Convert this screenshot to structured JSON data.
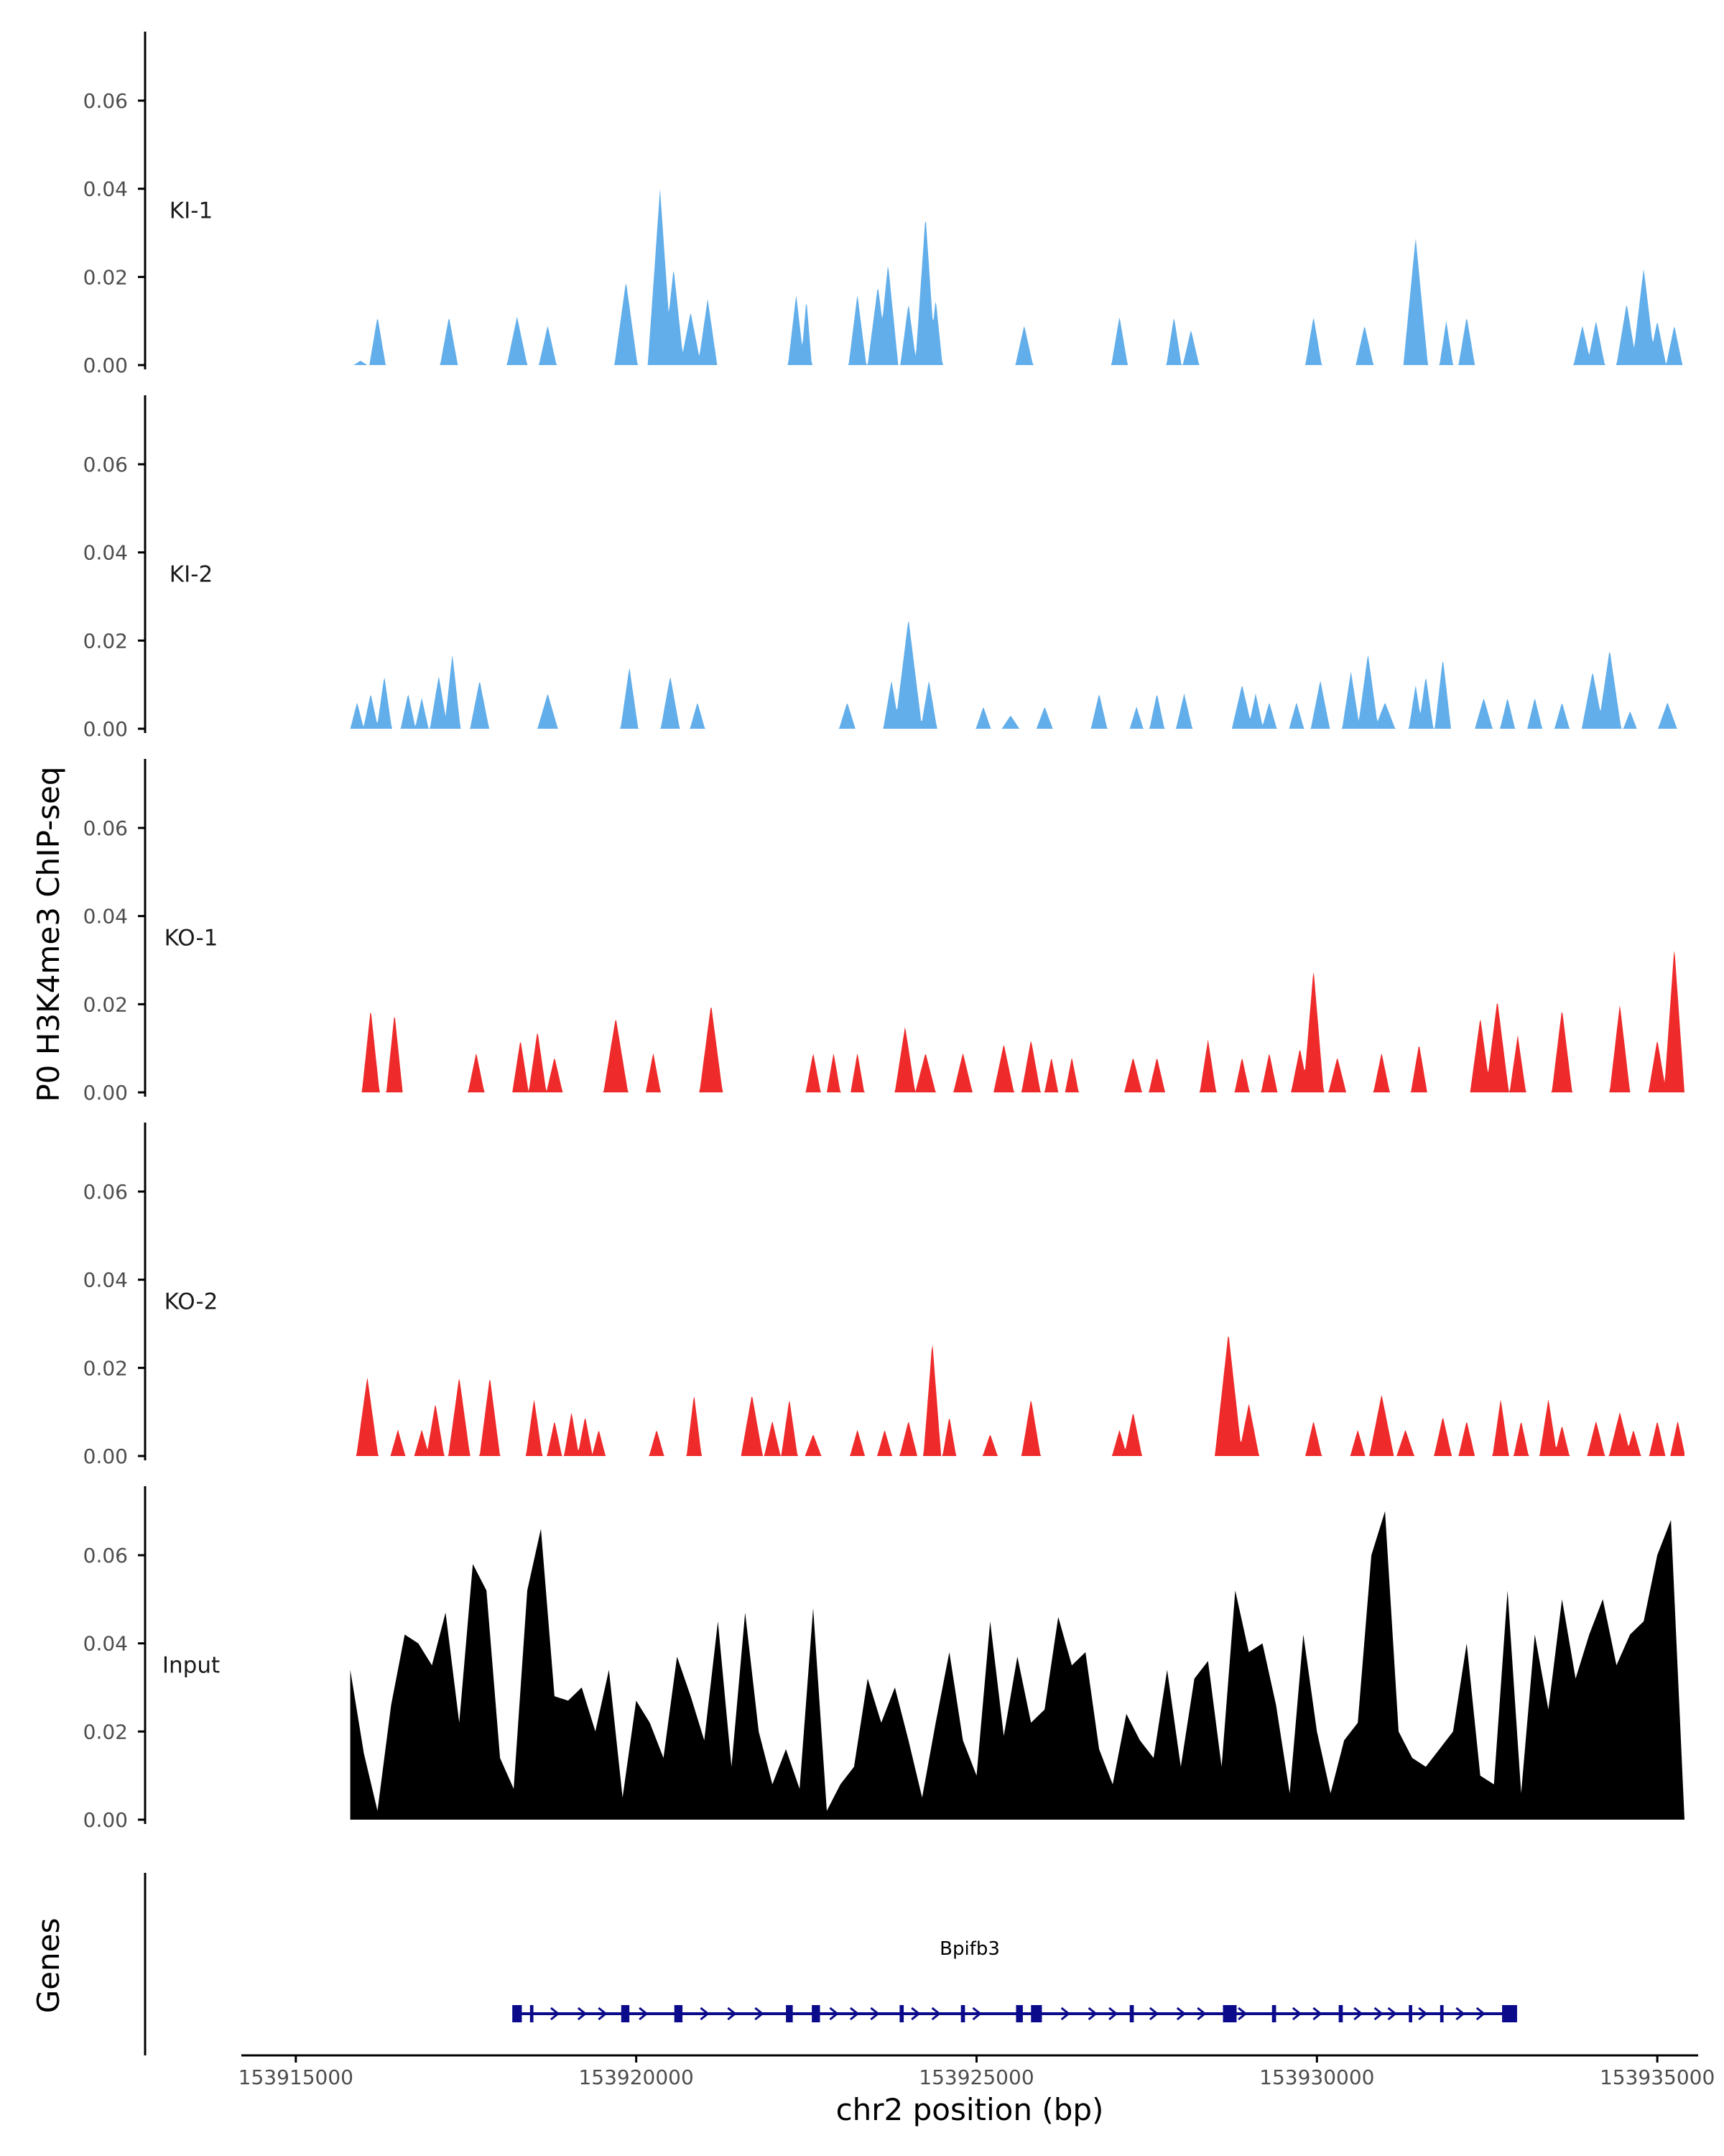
{
  "chart_data": {
    "type": "area",
    "title": "",
    "ylabel": "P0 H3K4me3 ChIP-seq",
    "xlabel": "chr2 position (bp)",
    "genes_label": "Genes",
    "xlim": [
      153914200,
      153935600
    ],
    "data_x_range": [
      153915800,
      153935400
    ],
    "ylim": [
      0,
      0.075
    ],
    "y_ticks": [
      0,
      0.02,
      0.04,
      0.06
    ],
    "y_tick_labels": [
      "0.00",
      "0.02",
      "0.04",
      "0.06"
    ],
    "x_ticks": [
      153915000,
      153920000,
      153925000,
      153930000,
      153935000
    ],
    "x_tick_labels": [
      "153915000",
      "153920000",
      "153925000",
      "153930000",
      "153935000"
    ],
    "colors": {
      "KI": "#62aeea",
      "KO": "#ee2a2a",
      "Input": "#000000",
      "gene": "#0a0a8a",
      "axis": "#000000"
    },
    "series": [
      {
        "name": "KI-1",
        "color": "#62aeea",
        "peaks": [
          [
            153915950,
            0.001,
            100
          ],
          [
            153916200,
            0.011,
            120
          ],
          [
            153917250,
            0.011,
            130
          ],
          [
            153918250,
            0.011,
            150
          ],
          [
            153918700,
            0.009,
            130
          ],
          [
            153919850,
            0.019,
            170
          ],
          [
            153920350,
            0.04,
            180
          ],
          [
            153920550,
            0.022,
            150
          ],
          [
            153920800,
            0.012,
            150
          ],
          [
            153921050,
            0.015,
            140
          ],
          [
            153922350,
            0.016,
            120
          ],
          [
            153922500,
            0.015,
            80
          ],
          [
            153923250,
            0.016,
            130
          ],
          [
            153923550,
            0.018,
            150
          ],
          [
            153923700,
            0.023,
            150
          ],
          [
            153924000,
            0.014,
            120
          ],
          [
            153924250,
            0.034,
            150
          ],
          [
            153924400,
            0.015,
            100
          ],
          [
            153925700,
            0.009,
            130
          ],
          [
            153927100,
            0.011,
            120
          ],
          [
            153927900,
            0.011,
            110
          ],
          [
            153928150,
            0.008,
            120
          ],
          [
            153929950,
            0.011,
            120
          ],
          [
            153930700,
            0.009,
            130
          ],
          [
            153931450,
            0.029,
            180
          ],
          [
            153931900,
            0.01,
            100
          ],
          [
            153932200,
            0.011,
            120
          ],
          [
            153933900,
            0.009,
            130
          ],
          [
            153934100,
            0.01,
            130
          ],
          [
            153934550,
            0.014,
            150
          ],
          [
            153934800,
            0.022,
            170
          ],
          [
            153935000,
            0.01,
            130
          ],
          [
            153935250,
            0.009,
            120
          ]
        ]
      },
      {
        "name": "KI-2",
        "color": "#62aeea",
        "peaks": [
          [
            153915900,
            0.006,
            100
          ],
          [
            153916100,
            0.008,
            110
          ],
          [
            153916300,
            0.012,
            110
          ],
          [
            153916650,
            0.008,
            110
          ],
          [
            153916850,
            0.007,
            100
          ],
          [
            153917100,
            0.012,
            130
          ],
          [
            153917300,
            0.017,
            120
          ],
          [
            153917700,
            0.011,
            140
          ],
          [
            153918700,
            0.008,
            150
          ],
          [
            153919900,
            0.014,
            130
          ],
          [
            153920500,
            0.012,
            140
          ],
          [
            153920900,
            0.006,
            110
          ],
          [
            153923100,
            0.006,
            120
          ],
          [
            153923750,
            0.011,
            120
          ],
          [
            153924000,
            0.025,
            200
          ],
          [
            153924300,
            0.011,
            120
          ],
          [
            153925100,
            0.005,
            110
          ],
          [
            153925500,
            0.003,
            130
          ],
          [
            153926000,
            0.005,
            120
          ],
          [
            153926800,
            0.008,
            120
          ],
          [
            153927350,
            0.005,
            100
          ],
          [
            153927650,
            0.008,
            110
          ],
          [
            153928050,
            0.008,
            120
          ],
          [
            153928900,
            0.01,
            150
          ],
          [
            153929100,
            0.008,
            110
          ],
          [
            153929300,
            0.006,
            110
          ],
          [
            153929700,
            0.006,
            110
          ],
          [
            153930050,
            0.011,
            140
          ],
          [
            153930500,
            0.013,
            130
          ],
          [
            153930750,
            0.017,
            150
          ],
          [
            153931000,
            0.006,
            150
          ],
          [
            153931450,
            0.01,
            100
          ],
          [
            153931600,
            0.012,
            110
          ],
          [
            153931850,
            0.016,
            120
          ],
          [
            153932450,
            0.007,
            130
          ],
          [
            153932800,
            0.007,
            110
          ],
          [
            153933200,
            0.007,
            110
          ],
          [
            153933600,
            0.006,
            110
          ],
          [
            153934050,
            0.013,
            160
          ],
          [
            153934300,
            0.018,
            170
          ],
          [
            153934600,
            0.004,
            100
          ],
          [
            153935150,
            0.006,
            140
          ]
        ]
      },
      {
        "name": "KO-1",
        "color": "#ee2a2a",
        "peaks": [
          [
            153916100,
            0.019,
            130
          ],
          [
            153916450,
            0.018,
            120
          ],
          [
            153917650,
            0.009,
            120
          ],
          [
            153918300,
            0.012,
            120
          ],
          [
            153918550,
            0.014,
            130
          ],
          [
            153918800,
            0.008,
            120
          ],
          [
            153919700,
            0.017,
            180
          ],
          [
            153920250,
            0.009,
            110
          ],
          [
            153921100,
            0.02,
            170
          ],
          [
            153922600,
            0.009,
            110
          ],
          [
            153922900,
            0.009,
            100
          ],
          [
            153923250,
            0.009,
            100
          ],
          [
            153923950,
            0.015,
            150
          ],
          [
            153924250,
            0.009,
            150
          ],
          [
            153924800,
            0.009,
            140
          ],
          [
            153925400,
            0.011,
            150
          ],
          [
            153925800,
            0.012,
            140
          ],
          [
            153926100,
            0.008,
            100
          ],
          [
            153926400,
            0.008,
            100
          ],
          [
            153927300,
            0.008,
            130
          ],
          [
            153927650,
            0.008,
            120
          ],
          [
            153928400,
            0.012,
            120
          ],
          [
            153928900,
            0.008,
            110
          ],
          [
            153929300,
            0.009,
            120
          ],
          [
            153929750,
            0.01,
            130
          ],
          [
            153929950,
            0.028,
            150
          ],
          [
            153930300,
            0.008,
            130
          ],
          [
            153930950,
            0.009,
            120
          ],
          [
            153931500,
            0.011,
            120
          ],
          [
            153932400,
            0.017,
            150
          ],
          [
            153932650,
            0.021,
            170
          ],
          [
            153932950,
            0.013,
            120
          ],
          [
            153933600,
            0.019,
            150
          ],
          [
            153934450,
            0.02,
            150
          ],
          [
            153935000,
            0.012,
            130
          ],
          [
            153935250,
            0.033,
            150
          ]
        ]
      },
      {
        "name": "KO-2",
        "color": "#ee2a2a",
        "peaks": [
          [
            153916050,
            0.018,
            160
          ],
          [
            153916500,
            0.006,
            110
          ],
          [
            153916850,
            0.006,
            110
          ],
          [
            153917050,
            0.012,
            130
          ],
          [
            153917400,
            0.018,
            160
          ],
          [
            153917850,
            0.018,
            150
          ],
          [
            153918500,
            0.013,
            120
          ],
          [
            153918800,
            0.008,
            110
          ],
          [
            153919050,
            0.01,
            110
          ],
          [
            153919250,
            0.009,
            110
          ],
          [
            153919450,
            0.006,
            100
          ],
          [
            153920300,
            0.006,
            110
          ],
          [
            153920850,
            0.014,
            110
          ],
          [
            153921700,
            0.014,
            160
          ],
          [
            153922000,
            0.008,
            120
          ],
          [
            153922250,
            0.013,
            120
          ],
          [
            153922600,
            0.005,
            120
          ],
          [
            153923250,
            0.006,
            110
          ],
          [
            153923650,
            0.006,
            110
          ],
          [
            153924000,
            0.008,
            130
          ],
          [
            153924350,
            0.026,
            130
          ],
          [
            153924600,
            0.009,
            100
          ],
          [
            153925200,
            0.005,
            110
          ],
          [
            153925800,
            0.013,
            140
          ],
          [
            153927100,
            0.006,
            110
          ],
          [
            153927300,
            0.01,
            130
          ],
          [
            153928700,
            0.028,
            200
          ],
          [
            153929000,
            0.012,
            150
          ],
          [
            153929950,
            0.008,
            120
          ],
          [
            153930600,
            0.006,
            110
          ],
          [
            153930950,
            0.014,
            180
          ],
          [
            153931300,
            0.006,
            130
          ],
          [
            153931850,
            0.009,
            130
          ],
          [
            153932200,
            0.008,
            120
          ],
          [
            153932700,
            0.013,
            120
          ],
          [
            153933000,
            0.008,
            110
          ],
          [
            153933400,
            0.013,
            130
          ],
          [
            153933600,
            0.007,
            110
          ],
          [
            153934100,
            0.008,
            130
          ],
          [
            153934450,
            0.01,
            160
          ],
          [
            153934650,
            0.006,
            110
          ],
          [
            153935000,
            0.008,
            120
          ],
          [
            153935300,
            0.008,
            110
          ]
        ]
      },
      {
        "name": "Input",
        "color": "#000000",
        "x": [
          153915800,
          153916000,
          153916200,
          153916400,
          153916600,
          153916800,
          153917000,
          153917200,
          153917400,
          153917600,
          153917800,
          153918000,
          153918200,
          153918400,
          153918600,
          153918800,
          153919000,
          153919200,
          153919400,
          153919600,
          153919800,
          153920000,
          153920200,
          153920400,
          153920600,
          153920800,
          153921000,
          153921200,
          153921400,
          153921600,
          153921800,
          153922000,
          153922200,
          153922400,
          153922600,
          153922800,
          153923000,
          153923200,
          153923400,
          153923600,
          153923800,
          153924000,
          153924200,
          153924400,
          153924600,
          153924800,
          153925000,
          153925200,
          153925400,
          153925600,
          153925800,
          153926000,
          153926200,
          153926400,
          153926600,
          153926800,
          153927000,
          153927200,
          153927400,
          153927600,
          153927800,
          153928000,
          153928200,
          153928400,
          153928600,
          153928800,
          153929000,
          153929200,
          153929400,
          153929600,
          153929800,
          153930000,
          153930200,
          153930400,
          153930600,
          153930800,
          153931000,
          153931200,
          153931400,
          153931600,
          153931800,
          153932000,
          153932200,
          153932400,
          153932600,
          153932800,
          153933000,
          153933200,
          153933400,
          153933600,
          153933800,
          153934000,
          153934200,
          153934400,
          153934600,
          153934800,
          153935000,
          153935200,
          153935400
        ],
        "values": [
          0.034,
          0.015,
          0.002,
          0.026,
          0.042,
          0.04,
          0.035,
          0.047,
          0.022,
          0.058,
          0.052,
          0.014,
          0.007,
          0.052,
          0.066,
          0.028,
          0.027,
          0.03,
          0.02,
          0.034,
          0.005,
          0.027,
          0.022,
          0.014,
          0.037,
          0.028,
          0.018,
          0.045,
          0.012,
          0.047,
          0.02,
          0.008,
          0.016,
          0.007,
          0.048,
          0.002,
          0.008,
          0.012,
          0.032,
          0.022,
          0.03,
          0.018,
          0.005,
          0.022,
          0.038,
          0.018,
          0.01,
          0.045,
          0.019,
          0.037,
          0.022,
          0.025,
          0.046,
          0.035,
          0.038,
          0.016,
          0.008,
          0.024,
          0.018,
          0.014,
          0.034,
          0.012,
          0.032,
          0.036,
          0.012,
          0.052,
          0.038,
          0.04,
          0.026,
          0.006,
          0.042,
          0.02,
          0.006,
          0.018,
          0.022,
          0.06,
          0.07,
          0.02,
          0.014,
          0.012,
          0.016,
          0.02,
          0.04,
          0.01,
          0.008,
          0.052,
          0.006,
          0.042,
          0.025,
          0.05,
          0.032,
          0.042,
          0.05,
          0.035,
          0.042,
          0.045,
          0.06,
          0.068,
          0.0
        ]
      }
    ],
    "gene": {
      "name": "Bpifb3",
      "start": 153918200,
      "end": 153932900,
      "strand": "+",
      "exons": [
        [
          153918180,
          153918320
        ],
        [
          153918440,
          153918490
        ],
        [
          153919780,
          153919900
        ],
        [
          153920560,
          153920680
        ],
        [
          153922200,
          153922300
        ],
        [
          153922580,
          153922700
        ],
        [
          153923870,
          153923930
        ],
        [
          153924770,
          153924830
        ],
        [
          153925580,
          153925680
        ],
        [
          153925800,
          153925960
        ],
        [
          153927250,
          153927310
        ],
        [
          153928620,
          153928820
        ],
        [
          153929340,
          153929400
        ],
        [
          153930320,
          153930380
        ],
        [
          153931350,
          153931400
        ],
        [
          153931810,
          153931860
        ],
        [
          153932720,
          153932940
        ]
      ],
      "arrows": [
        153918800,
        153919200,
        153919500,
        153920100,
        153921000,
        153921400,
        153921800,
        153922900,
        153923200,
        153923500,
        153924100,
        153924400,
        153925000,
        153926300,
        153926700,
        153927000,
        153927600,
        153928000,
        153928300,
        153928900,
        153929700,
        153930000,
        153930600,
        153930900,
        153931100,
        153931550,
        153932100,
        153932400
      ]
    }
  }
}
